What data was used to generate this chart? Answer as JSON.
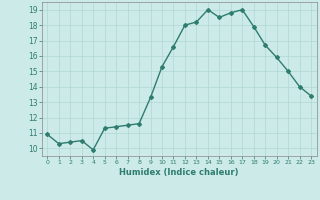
{
  "x": [
    0,
    1,
    2,
    3,
    4,
    5,
    6,
    7,
    8,
    9,
    10,
    11,
    12,
    13,
    14,
    15,
    16,
    17,
    18,
    19,
    20,
    21,
    22,
    23
  ],
  "y": [
    10.9,
    10.3,
    10.4,
    10.5,
    9.9,
    11.3,
    11.4,
    11.5,
    11.6,
    13.3,
    15.3,
    16.6,
    18.0,
    18.2,
    19.0,
    18.5,
    18.8,
    19.0,
    17.9,
    16.7,
    15.9,
    15.0,
    14.0,
    13.4
  ],
  "line_color": "#2e7d6e",
  "marker": "D",
  "marker_size": 2.0,
  "linewidth": 1.0,
  "xlabel": "Humidex (Indice chaleur)",
  "bg_color": "#cceae7",
  "grid_color": "#b0d8d4",
  "tick_color": "#2e7d6e",
  "ylim": [
    9.5,
    19.5
  ],
  "xlim": [
    -0.5,
    23.5
  ],
  "yticks": [
    10,
    11,
    12,
    13,
    14,
    15,
    16,
    17,
    18,
    19
  ],
  "xticks": [
    0,
    1,
    2,
    3,
    4,
    5,
    6,
    7,
    8,
    9,
    10,
    11,
    12,
    13,
    14,
    15,
    16,
    17,
    18,
    19,
    20,
    21,
    22,
    23
  ],
  "xtick_labels": [
    "0",
    "1",
    "2",
    "3",
    "4",
    "5",
    "6",
    "7",
    "8",
    "9",
    "10",
    "11",
    "12",
    "13",
    "14",
    "15",
    "16",
    "17",
    "18",
    "19",
    "20",
    "21",
    "22",
    "23"
  ]
}
